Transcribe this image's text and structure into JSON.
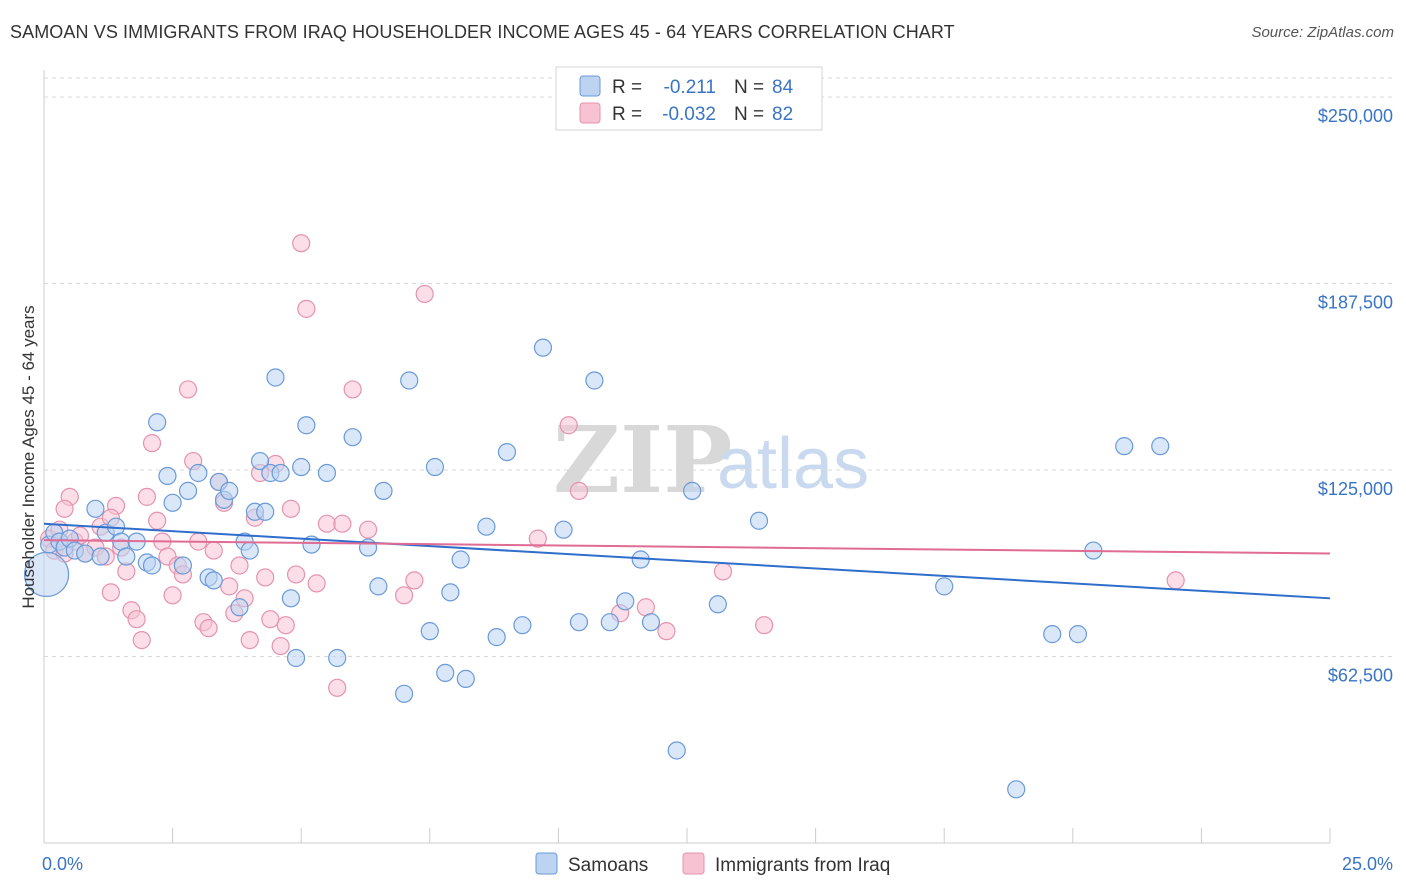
{
  "title": "SAMOAN VS IMMIGRANTS FROM IRAQ HOUSEHOLDER INCOME AGES 45 - 64 YEARS CORRELATION CHART",
  "source": "Source: ZipAtlas.com",
  "watermark": {
    "left": "ZIP",
    "right": "atlas"
  },
  "legend": {
    "row1": {
      "r_label": "R =",
      "r_value": "-0.211",
      "n_label": "N =",
      "n_value": "84"
    },
    "row2": {
      "r_label": "R =",
      "r_value": "-0.032",
      "n_label": "N =",
      "n_value": "82"
    }
  },
  "bottom_legend": {
    "series1": "Samoans",
    "series2": "Immigrants from Iraq"
  },
  "colors": {
    "samoans_fill": "#bcd3f2",
    "samoans_stroke": "#6a9ad8",
    "samoans_line": "#2f6fcb",
    "iraq_fill": "#f7c3d3",
    "iraq_stroke": "#e693ad",
    "iraq_line": "#e06b93",
    "tick_label": "#3a74c5",
    "grid": "#d9d9d9"
  },
  "chart_data": {
    "type": "scatter",
    "title": "SAMOAN VS IMMIGRANTS FROM IRAQ HOUSEHOLDER INCOME AGES 45 - 64 YEARS CORRELATION CHART",
    "xlabel": "",
    "ylabel": "Householder Income Ages 45 - 64 years",
    "xlim": [
      0,
      25
    ],
    "ylim": [
      0,
      262000
    ],
    "x_tick_labels": [
      "0.0%",
      "25.0%"
    ],
    "y_tick_labels": [
      "$62,500",
      "$125,000",
      "$187,500",
      "$250,000"
    ],
    "y_ticks": [
      62500,
      125000,
      187500,
      250000
    ],
    "grid": "horizontal dashed",
    "legend_position": "top-center",
    "series": [
      {
        "name": "Samoans",
        "r": -0.211,
        "n": 84,
        "trend": {
          "x": [
            0,
            25
          ],
          "y": [
            107000,
            82000
          ]
        },
        "points": [
          [
            0.1,
            100000
          ],
          [
            0.2,
            104000
          ],
          [
            0.3,
            101000
          ],
          [
            0.4,
            99000
          ],
          [
            0.5,
            102000
          ],
          [
            0.6,
            98000
          ],
          [
            0.8,
            97000
          ],
          [
            1.0,
            112000
          ],
          [
            1.1,
            96000
          ],
          [
            1.2,
            104000
          ],
          [
            1.4,
            106000
          ],
          [
            1.5,
            101000
          ],
          [
            1.6,
            96000
          ],
          [
            1.8,
            101000
          ],
          [
            2.0,
            94000
          ],
          [
            2.1,
            93000
          ],
          [
            2.2,
            141000
          ],
          [
            2.4,
            123000
          ],
          [
            2.5,
            114000
          ],
          [
            2.7,
            93000
          ],
          [
            2.8,
            118000
          ],
          [
            3.0,
            124000
          ],
          [
            3.2,
            89000
          ],
          [
            3.3,
            88000
          ],
          [
            3.4,
            121000
          ],
          [
            3.5,
            115000
          ],
          [
            3.6,
            118000
          ],
          [
            3.8,
            79000
          ],
          [
            3.9,
            101000
          ],
          [
            4.0,
            98000
          ],
          [
            4.1,
            111000
          ],
          [
            4.2,
            128000
          ],
          [
            4.3,
            111000
          ],
          [
            4.4,
            124000
          ],
          [
            4.5,
            156000
          ],
          [
            4.6,
            124000
          ],
          [
            4.8,
            82000
          ],
          [
            4.9,
            62000
          ],
          [
            5.0,
            126000
          ],
          [
            5.1,
            140000
          ],
          [
            5.2,
            100000
          ],
          [
            5.5,
            124000
          ],
          [
            5.7,
            62000
          ],
          [
            6.0,
            136000
          ],
          [
            6.3,
            99000
          ],
          [
            6.5,
            86000
          ],
          [
            6.6,
            118000
          ],
          [
            7.0,
            50000
          ],
          [
            7.1,
            155000
          ],
          [
            7.5,
            71000
          ],
          [
            7.6,
            126000
          ],
          [
            7.8,
            57000
          ],
          [
            7.9,
            84000
          ],
          [
            8.1,
            95000
          ],
          [
            8.2,
            55000
          ],
          [
            8.6,
            106000
          ],
          [
            8.8,
            69000
          ],
          [
            9.0,
            131000
          ],
          [
            9.3,
            73000
          ],
          [
            9.7,
            166000
          ],
          [
            10.1,
            105000
          ],
          [
            10.4,
            74000
          ],
          [
            10.7,
            155000
          ],
          [
            11.0,
            74000
          ],
          [
            11.3,
            81000
          ],
          [
            11.6,
            95000
          ],
          [
            11.8,
            74000
          ],
          [
            12.3,
            31000
          ],
          [
            12.6,
            118000
          ],
          [
            13.1,
            80000
          ],
          [
            13.9,
            108000
          ],
          [
            17.5,
            86000
          ],
          [
            18.9,
            18000
          ],
          [
            19.6,
            70000
          ],
          [
            20.1,
            70000
          ],
          [
            20.4,
            98000
          ],
          [
            21.0,
            133000
          ],
          [
            21.7,
            133000
          ]
        ]
      },
      {
        "name": "Immigrants from Iraq",
        "r": -0.032,
        "n": 82,
        "trend": {
          "x": [
            0,
            25
          ],
          "y": [
            101500,
            97000
          ]
        },
        "points": [
          [
            0.1,
            102000
          ],
          [
            0.2,
            98000
          ],
          [
            0.3,
            105000
          ],
          [
            0.4,
            97000
          ],
          [
            0.5,
            116000
          ],
          [
            0.6,
            101000
          ],
          [
            0.7,
            103000
          ],
          [
            0.8,
            97000
          ],
          [
            1.0,
            99000
          ],
          [
            1.1,
            106000
          ],
          [
            1.2,
            96000
          ],
          [
            1.3,
            84000
          ],
          [
            1.4,
            113000
          ],
          [
            1.5,
            99000
          ],
          [
            1.6,
            91000
          ],
          [
            1.7,
            78000
          ],
          [
            1.8,
            75000
          ],
          [
            1.9,
            68000
          ],
          [
            2.0,
            116000
          ],
          [
            2.1,
            134000
          ],
          [
            2.2,
            108000
          ],
          [
            2.3,
            101000
          ],
          [
            2.4,
            96000
          ],
          [
            2.5,
            83000
          ],
          [
            2.6,
            93000
          ],
          [
            2.7,
            90000
          ],
          [
            2.8,
            152000
          ],
          [
            2.9,
            128000
          ],
          [
            3.0,
            101000
          ],
          [
            3.1,
            74000
          ],
          [
            3.2,
            72000
          ],
          [
            3.3,
            98000
          ],
          [
            3.4,
            121000
          ],
          [
            3.5,
            114000
          ],
          [
            3.6,
            86000
          ],
          [
            3.7,
            77000
          ],
          [
            3.8,
            93000
          ],
          [
            3.9,
            82000
          ],
          [
            4.0,
            68000
          ],
          [
            4.1,
            109000
          ],
          [
            4.2,
            124000
          ],
          [
            4.3,
            89000
          ],
          [
            4.4,
            75000
          ],
          [
            4.5,
            127000
          ],
          [
            4.6,
            66000
          ],
          [
            4.7,
            73000
          ],
          [
            4.8,
            112000
          ],
          [
            4.9,
            90000
          ],
          [
            5.0,
            201000
          ],
          [
            5.1,
            179000
          ],
          [
            5.3,
            87000
          ],
          [
            5.5,
            107000
          ],
          [
            5.7,
            52000
          ],
          [
            5.8,
            107000
          ],
          [
            6.0,
            152000
          ],
          [
            6.3,
            105000
          ],
          [
            7.0,
            83000
          ],
          [
            7.2,
            88000
          ],
          [
            7.4,
            184000
          ],
          [
            9.6,
            102000
          ],
          [
            10.2,
            140000
          ],
          [
            10.4,
            118000
          ],
          [
            11.2,
            77000
          ],
          [
            11.7,
            79000
          ],
          [
            12.1,
            71000
          ],
          [
            13.2,
            91000
          ],
          [
            14.0,
            73000
          ],
          [
            22.0,
            88000
          ],
          [
            0.4,
            112000
          ],
          [
            1.3,
            109000
          ]
        ]
      }
    ]
  }
}
